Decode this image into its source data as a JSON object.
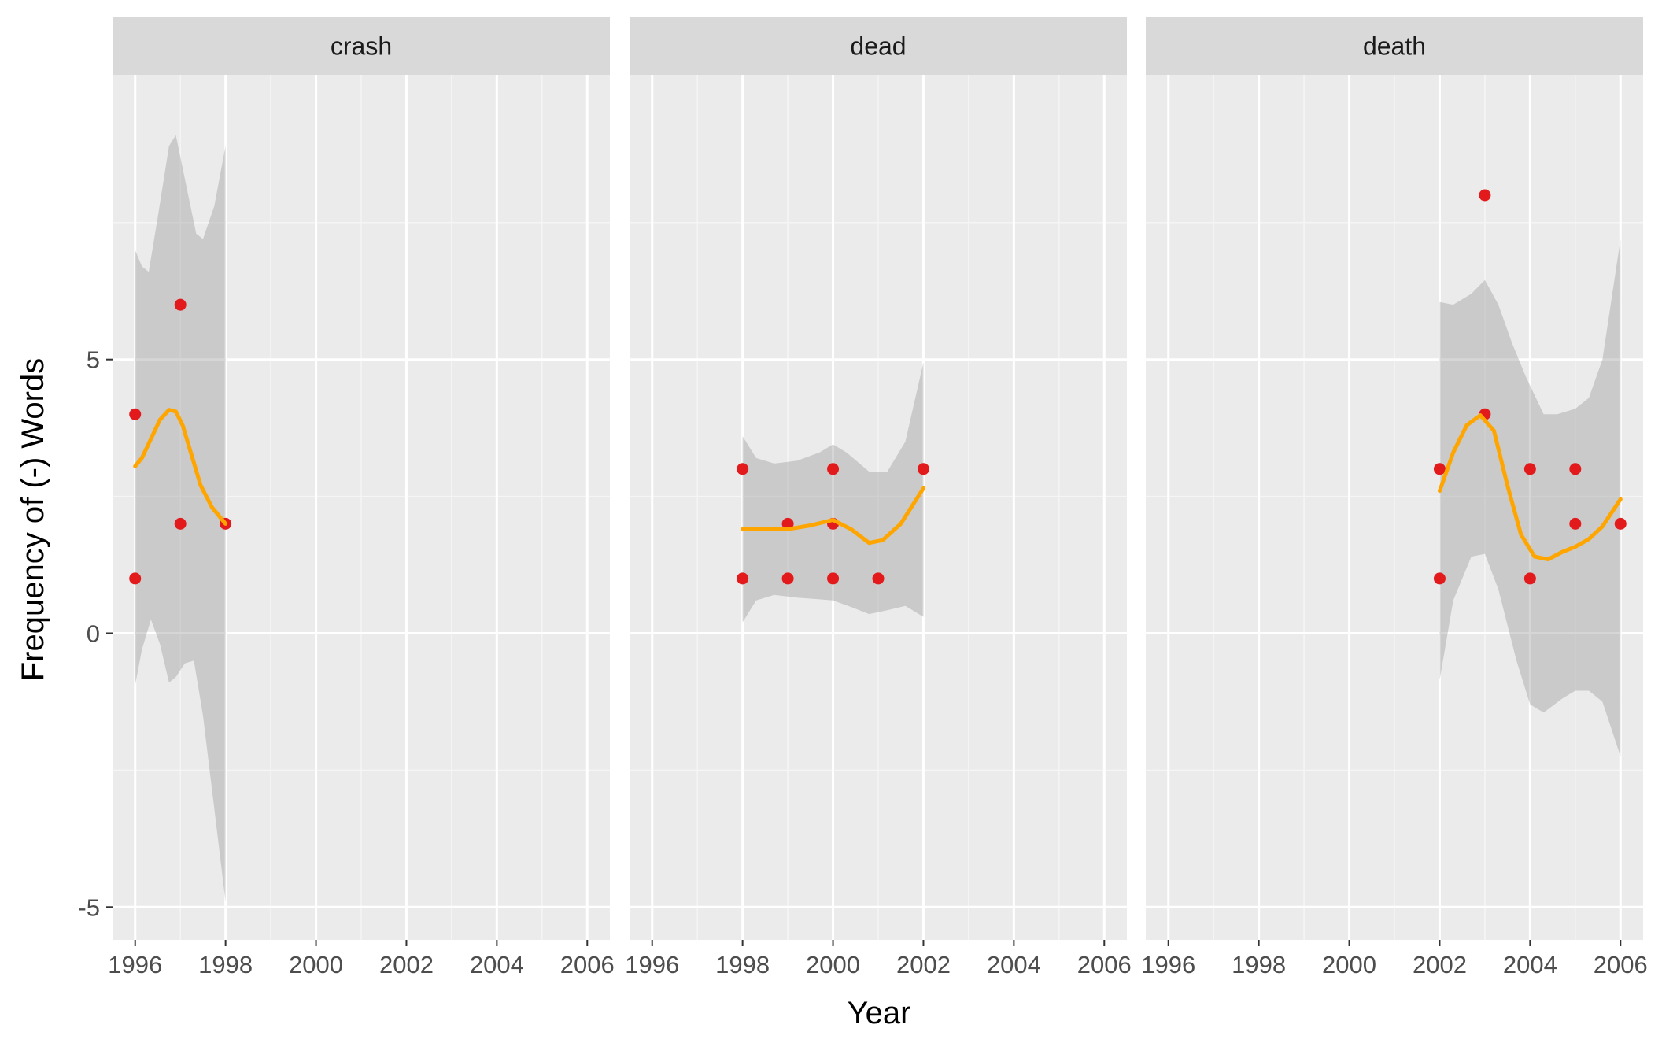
{
  "chart_data": {
    "type": "scatter",
    "xlabel": "Year",
    "ylabel": "Frequency of (-) Words",
    "xlim": [
      1995.5,
      2006.5
    ],
    "ylim": [
      -5.6,
      10.2
    ],
    "x_ticks": [
      1996,
      1998,
      2000,
      2002,
      2004,
      2006
    ],
    "y_ticks": [
      -5,
      0,
      5
    ],
    "grid": true,
    "colors": {
      "panel_bg": "#ebebeb",
      "strip_bg": "#d9d9d9",
      "grid_major": "#ffffff",
      "grid_minor": "#f5f5f5",
      "points": "#e31a1c",
      "smooth_line": "#ffa500",
      "ribbon": "#c8c8c8"
    },
    "panels": [
      {
        "label": "crash",
        "points": [
          [
            1996,
            4
          ],
          [
            1996,
            1
          ],
          [
            1997,
            6
          ],
          [
            1997,
            2
          ],
          [
            1998,
            2
          ]
        ],
        "smooth": [
          [
            1996,
            3.05
          ],
          [
            1996.15,
            3.2
          ],
          [
            1996.35,
            3.55
          ],
          [
            1996.55,
            3.9
          ],
          [
            1996.75,
            4.08
          ],
          [
            1996.9,
            4.05
          ],
          [
            1997.05,
            3.8
          ],
          [
            1997.25,
            3.25
          ],
          [
            1997.45,
            2.7
          ],
          [
            1997.7,
            2.3
          ],
          [
            1998,
            2.0
          ]
        ],
        "se_upper": [
          [
            1996,
            7.0
          ],
          [
            1996.15,
            6.7
          ],
          [
            1996.3,
            6.6
          ],
          [
            1996.5,
            7.6
          ],
          [
            1996.75,
            8.9
          ],
          [
            1996.9,
            9.1
          ],
          [
            1997.1,
            8.3
          ],
          [
            1997.35,
            7.3
          ],
          [
            1997.5,
            7.2
          ],
          [
            1997.75,
            7.8
          ],
          [
            1998,
            8.9
          ]
        ],
        "se_lower": [
          [
            1996,
            -0.95
          ],
          [
            1996.15,
            -0.3
          ],
          [
            1996.35,
            0.25
          ],
          [
            1996.55,
            -0.2
          ],
          [
            1996.75,
            -0.9
          ],
          [
            1996.9,
            -0.8
          ],
          [
            1997.1,
            -0.55
          ],
          [
            1997.3,
            -0.5
          ],
          [
            1997.5,
            -1.5
          ],
          [
            1997.75,
            -3.2
          ],
          [
            1998,
            -4.9
          ]
        ]
      },
      {
        "label": "dead",
        "points": [
          [
            1998,
            3
          ],
          [
            1998,
            1
          ],
          [
            1999,
            2
          ],
          [
            1999,
            1
          ],
          [
            2000,
            3
          ],
          [
            2000,
            2
          ],
          [
            2000,
            1
          ],
          [
            2001,
            1
          ],
          [
            2002,
            3
          ]
        ],
        "smooth": [
          [
            1998,
            1.9
          ],
          [
            1998.5,
            1.9
          ],
          [
            1999,
            1.9
          ],
          [
            1999.5,
            1.97
          ],
          [
            2000,
            2.07
          ],
          [
            2000.4,
            1.9
          ],
          [
            2000.8,
            1.65
          ],
          [
            2001.1,
            1.7
          ],
          [
            2001.5,
            2.0
          ],
          [
            2002,
            2.65
          ]
        ],
        "se_upper": [
          [
            1998,
            3.6
          ],
          [
            1998.3,
            3.2
          ],
          [
            1998.7,
            3.1
          ],
          [
            1999.2,
            3.15
          ],
          [
            1999.7,
            3.3
          ],
          [
            2000,
            3.45
          ],
          [
            2000.3,
            3.3
          ],
          [
            2000.8,
            2.95
          ],
          [
            2001.2,
            2.95
          ],
          [
            2001.6,
            3.5
          ],
          [
            2002,
            4.95
          ]
        ],
        "se_lower": [
          [
            1998,
            0.2
          ],
          [
            1998.3,
            0.6
          ],
          [
            1998.7,
            0.7
          ],
          [
            1999.2,
            0.65
          ],
          [
            1999.7,
            0.62
          ],
          [
            2000,
            0.6
          ],
          [
            2000.4,
            0.48
          ],
          [
            2000.8,
            0.35
          ],
          [
            2001.2,
            0.42
          ],
          [
            2001.6,
            0.5
          ],
          [
            2002,
            0.3
          ]
        ]
      },
      {
        "label": "death",
        "points": [
          [
            2002,
            3
          ],
          [
            2002,
            1
          ],
          [
            2003,
            8
          ],
          [
            2003,
            4
          ],
          [
            2004,
            3
          ],
          [
            2004,
            1
          ],
          [
            2005,
            3
          ],
          [
            2005,
            2
          ],
          [
            2006,
            2
          ]
        ],
        "smooth": [
          [
            2002,
            2.6
          ],
          [
            2002.3,
            3.3
          ],
          [
            2002.6,
            3.8
          ],
          [
            2002.9,
            3.98
          ],
          [
            2003.2,
            3.7
          ],
          [
            2003.5,
            2.7
          ],
          [
            2003.8,
            1.8
          ],
          [
            2004.1,
            1.4
          ],
          [
            2004.4,
            1.35
          ],
          [
            2004.7,
            1.48
          ],
          [
            2005,
            1.58
          ],
          [
            2005.3,
            1.72
          ],
          [
            2005.6,
            1.95
          ],
          [
            2006,
            2.45
          ]
        ],
        "se_upper": [
          [
            2002,
            6.05
          ],
          [
            2002.3,
            6.0
          ],
          [
            2002.7,
            6.2
          ],
          [
            2003,
            6.45
          ],
          [
            2003.3,
            6.0
          ],
          [
            2003.6,
            5.3
          ],
          [
            2003.9,
            4.7
          ],
          [
            2004.3,
            4.0
          ],
          [
            2004.6,
            4.0
          ],
          [
            2005,
            4.1
          ],
          [
            2005.3,
            4.3
          ],
          [
            2005.6,
            5.0
          ],
          [
            2006,
            7.2
          ]
        ],
        "se_lower": [
          [
            2002,
            -0.85
          ],
          [
            2002.3,
            0.6
          ],
          [
            2002.7,
            1.4
          ],
          [
            2003,
            1.45
          ],
          [
            2003.3,
            0.8
          ],
          [
            2003.7,
            -0.5
          ],
          [
            2004,
            -1.3
          ],
          [
            2004.3,
            -1.45
          ],
          [
            2004.7,
            -1.2
          ],
          [
            2005,
            -1.05
          ],
          [
            2005.3,
            -1.05
          ],
          [
            2005.6,
            -1.25
          ],
          [
            2006,
            -2.25
          ]
        ]
      }
    ]
  }
}
